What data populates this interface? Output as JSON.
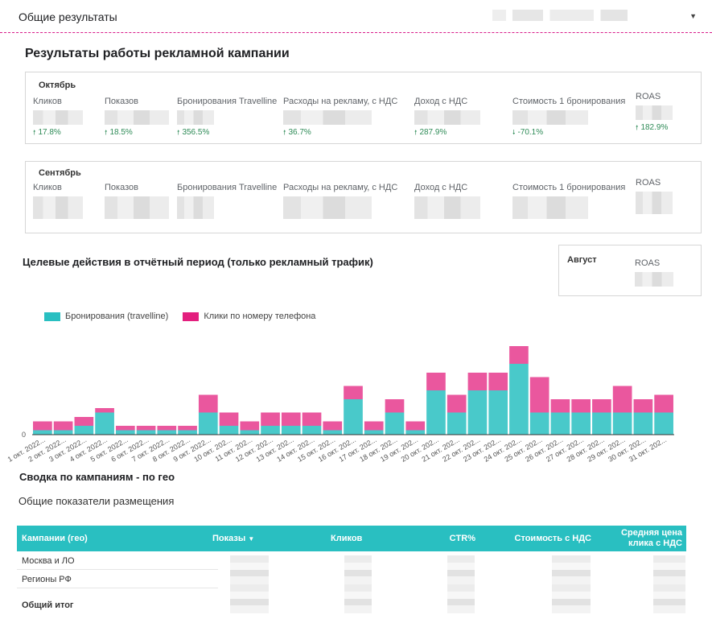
{
  "header": {
    "title": "Общие результаты",
    "select_value": ""
  },
  "main": {
    "title": "Результаты работы рекламной кампании"
  },
  "cards": {
    "october": {
      "title": "Октябрь",
      "kpis": [
        {
          "label": "Кликов",
          "delta": "17.8%",
          "dir": "up"
        },
        {
          "label": "Показов",
          "delta": "18.5%",
          "dir": "up"
        },
        {
          "label": "Бронирования Travelline",
          "delta": "356.5%",
          "dir": "up"
        },
        {
          "label": "Расходы на рекламу, с НДС",
          "delta": "36.7%",
          "dir": "up"
        },
        {
          "label": "Доход с НДС",
          "delta": "287.9%",
          "dir": "up"
        },
        {
          "label": "Стоимость 1 бронирования",
          "delta": "-70.1%",
          "dir": "down"
        },
        {
          "label": "ROAS",
          "delta": "182.9%",
          "dir": "up"
        }
      ]
    },
    "september": {
      "title": "Сентябрь",
      "kpis": [
        {
          "label": "Кликов"
        },
        {
          "label": "Показов"
        },
        {
          "label": "Бронирования Travelline"
        },
        {
          "label": "Расходы на рекламу, с НДС"
        },
        {
          "label": "Доход с НДС"
        },
        {
          "label": "Стоимость 1 бронирования"
        },
        {
          "label": "ROAS"
        }
      ]
    },
    "august": {
      "title": "Август",
      "kpi_label": "ROAS"
    }
  },
  "arrows": {
    "up": "🠕",
    "down": "🠗"
  },
  "chart_data": {
    "type": "bar",
    "title": "Целевые действия в отчётный период (только рекламный трафик)",
    "categories": [
      "1 окт. 2022...",
      "2 окт. 2022...",
      "3 окт. 2022...",
      "4 окт. 2022...",
      "5 окт. 2022...",
      "6 окт. 2022...",
      "7 окт. 2022...",
      "8 окт. 2022...",
      "9 окт. 2022...",
      "10 окт. 2022...",
      "11 окт. 2022...",
      "12 окт. 2022...",
      "13 окт. 2022...",
      "14 окт. 2022...",
      "15 окт. 2022...",
      "16 окт. 2022...",
      "17 окт. 2022...",
      "18 окт. 2022...",
      "19 окт. 2022...",
      "20 окт. 2022...",
      "21 окт. 2022...",
      "22 окт. 2022...",
      "23 окт. 2022...",
      "24 окт. 2022...",
      "25 окт. 2022...",
      "26 окт. 2022...",
      "27 окт. 2022...",
      "28 окт. 2022...",
      "29 окт. 2022...",
      "30 окт. 2022...",
      "31 окт. 2022..."
    ],
    "tick_labels": [
      "1 окт. 2022...",
      "2 окт. 2022...",
      "3 окт. 2022...",
      "4 окт. 2022...",
      "5 окт. 2022...",
      "6 окт. 2022...",
      "7 окт. 2022...",
      "8 окт. 2022...",
      "9 окт. 2022...",
      "10 окт. 202...",
      "11 окт. 202...",
      "12 окт. 202...",
      "13 окт. 202...",
      "14 окт. 202...",
      "15 окт. 202...",
      "16 окт. 202...",
      "17 окт. 202...",
      "18 окт. 202...",
      "19 окт. 202...",
      "20 окт. 202...",
      "21 окт. 202...",
      "22 окт. 202...",
      "23 окт. 202...",
      "24 окт. 202...",
      "25 окт. 202...",
      "26 окт. 202...",
      "27 окт. 202...",
      "28 окт. 202...",
      "29 окт. 202...",
      "30 окт. 202...",
      "31 окт. 202..."
    ],
    "series": [
      {
        "name": "Бронирования (travelline)",
        "color": "#29bfc1",
        "values": [
          1,
          1,
          2,
          5,
          1,
          1,
          1,
          1,
          5,
          2,
          1,
          2,
          2,
          2,
          1,
          8,
          1,
          5,
          1,
          10,
          5,
          10,
          10,
          16,
          5,
          5,
          5,
          5,
          5,
          5,
          5
        ]
      },
      {
        "name": "Клики по номеру телефона",
        "color": "#e31f7e",
        "values": [
          2,
          2,
          2,
          1,
          1,
          1,
          1,
          1,
          4,
          3,
          2,
          3,
          3,
          3,
          2,
          3,
          2,
          3,
          2,
          4,
          4,
          4,
          4,
          4,
          8,
          3,
          3,
          3,
          6,
          3,
          4
        ]
      }
    ],
    "y_tick": "0",
    "legend": "top-left",
    "grid": false
  },
  "summary": {
    "title": "Сводка по кампаниям - по гео",
    "subtitle": "Общие показатели размещения",
    "columns": [
      {
        "label": "Кампании (гео)"
      },
      {
        "label": "Показы",
        "sort": "▼"
      },
      {
        "label": "Кликов"
      },
      {
        "label": "CTR%"
      },
      {
        "label": "Стоимость с НДС"
      },
      {
        "label": "Средняя цена клика с НДС"
      }
    ],
    "rows": [
      "Москва и ЛО",
      "Регионы РФ"
    ],
    "total_label": "Общий итог"
  }
}
